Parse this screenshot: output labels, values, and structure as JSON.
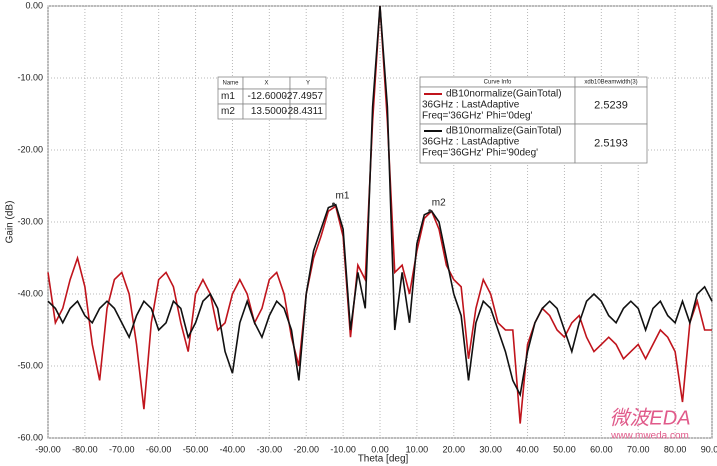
{
  "chart_data": {
    "type": "line",
    "x_label": "Theta [deg]",
    "y_label": "Gain (dB)",
    "x": [
      -90,
      -88,
      -86,
      -84,
      -82,
      -80,
      -78,
      -76,
      -74,
      -72,
      -70,
      -68,
      -66,
      -64,
      -62,
      -60,
      -58,
      -56,
      -54,
      -52,
      -50,
      -48,
      -46,
      -44,
      -42,
      -40,
      -38,
      -36,
      -34,
      -32,
      -30,
      -28,
      -26,
      -24,
      -22,
      -20,
      -18,
      -16,
      -14,
      -12,
      -10,
      -8,
      -6,
      -4,
      -2,
      0,
      2,
      4,
      6,
      8,
      10,
      12,
      14,
      16,
      18,
      20,
      22,
      24,
      26,
      28,
      30,
      32,
      34,
      36,
      38,
      40,
      42,
      44,
      46,
      48,
      50,
      52,
      54,
      56,
      58,
      60,
      62,
      64,
      66,
      68,
      70,
      72,
      74,
      76,
      78,
      80,
      82,
      84,
      86,
      88,
      90
    ],
    "series": [
      {
        "name": "dB10normalize(GainTotal)",
        "setup": "36GHz : LastAdaptive",
        "variation": "Freq='36GHz' Phi='0deg'",
        "beamwidth": 2.5239,
        "color": "#c0141c",
        "values": [
          -37,
          -44,
          -42,
          -38,
          -35,
          -39,
          -47,
          -52,
          -42,
          -38,
          -37,
          -40,
          -47,
          -56,
          -44,
          -38,
          -37,
          -39,
          -44,
          -48,
          -40,
          -38,
          -40,
          -45,
          -44,
          -40,
          -38,
          -40,
          -44,
          -42,
          -38,
          -37,
          -40,
          -46,
          -50,
          -40,
          -35,
          -32,
          -28.5,
          -27.8,
          -32,
          -46,
          -36,
          -38,
          -16,
          0,
          -16,
          -37,
          -36,
          -40,
          -34,
          -29.5,
          -28.5,
          -31,
          -36,
          -38,
          -39,
          -49,
          -42,
          -38,
          -40,
          -44,
          -45,
          -45,
          -58,
          -47,
          -44,
          -42,
          -43,
          -45,
          -46,
          -44,
          -43,
          -46,
          -48,
          -47,
          -46,
          -47,
          -49,
          -48,
          -47,
          -49,
          -47,
          -45,
          -46,
          -48,
          -55,
          -44,
          -41,
          -45,
          -45
        ]
      },
      {
        "name": "dB10normalize(GainTotal)",
        "setup": "36GHz : LastAdaptive",
        "variation": "Freq='36GHz' Phi='90deg'",
        "beamwidth": 2.5193,
        "color": "#111111",
        "values": [
          -41,
          -42,
          -44,
          -42,
          -41,
          -43,
          -44,
          -42,
          -41,
          -42,
          -44,
          -46,
          -43,
          -41,
          -42,
          -45,
          -44,
          -41,
          -42,
          -46,
          -44,
          -41,
          -40,
          -42,
          -48,
          -51,
          -44,
          -41,
          -44,
          -46,
          -43,
          -41,
          -42,
          -45,
          -52,
          -40,
          -34,
          -31,
          -28,
          -27.6,
          -31,
          -45,
          -37,
          -42,
          -14,
          0,
          -14,
          -45,
          -37,
          -44,
          -33,
          -29,
          -28.5,
          -30,
          -35,
          -40,
          -43,
          -52,
          -44,
          -41,
          -42,
          -45,
          -48,
          -52,
          -54,
          -48,
          -44,
          -42,
          -41,
          -42,
          -45,
          -48,
          -44,
          -41,
          -40,
          -41,
          -43,
          -44,
          -42,
          -41,
          -42,
          -45,
          -42,
          -41,
          -43,
          -44,
          -41,
          -44,
          -40,
          -39,
          -41
        ]
      }
    ],
    "legend": {
      "header": [
        "Curve Info",
        "xdb10Beamwidth(3)"
      ]
    },
    "markers": {
      "columns": [
        "Name",
        "X",
        "Y"
      ],
      "names": [
        "m1",
        "m2"
      ],
      "x": [
        -12.6,
        13.5
      ],
      "x_labels": [
        "-12.6000",
        "13.5000"
      ],
      "y": [
        -27.4957,
        -28.4311
      ],
      "y_labels": [
        "-27.4957",
        "-28.4311"
      ]
    },
    "xlim": [
      -90,
      90
    ],
    "ylim": [
      -60,
      0
    ],
    "xticks": [
      {
        "value": -90,
        "label": "-90.00"
      },
      {
        "value": -80,
        "label": "-80.00"
      },
      {
        "value": -70,
        "label": "-70.00"
      },
      {
        "value": -60,
        "label": "-60.00"
      },
      {
        "value": -50,
        "label": "-50.00"
      },
      {
        "value": -40,
        "label": "-40.00"
      },
      {
        "value": -30,
        "label": "-30.00"
      },
      {
        "value": -20,
        "label": "-20.00"
      },
      {
        "value": -10,
        "label": "-10.00"
      },
      {
        "value": 0,
        "label": "0.00"
      },
      {
        "value": 10,
        "label": "10.00"
      },
      {
        "value": 20,
        "label": "20.00"
      },
      {
        "value": 30,
        "label": "30.00"
      },
      {
        "value": 40,
        "label": "40.00"
      },
      {
        "value": 50,
        "label": "50.00"
      },
      {
        "value": 60,
        "label": "60.00"
      },
      {
        "value": 70,
        "label": "70.00"
      },
      {
        "value": 80,
        "label": "80.00"
      },
      {
        "value": 90,
        "label": "90.00"
      }
    ],
    "yticks": [
      {
        "value": 0,
        "label": "0.00"
      },
      {
        "value": -10,
        "label": "-10.00"
      },
      {
        "value": -20,
        "label": "-20.00"
      },
      {
        "value": -30,
        "label": "-30.00"
      },
      {
        "value": -40,
        "label": "-40.00"
      },
      {
        "value": -50,
        "label": "-50.00"
      },
      {
        "value": -60,
        "label": "-60.00"
      }
    ],
    "grid": true,
    "watermark": {
      "logo": "微波EDA",
      "url": "www.mweda.com"
    }
  }
}
